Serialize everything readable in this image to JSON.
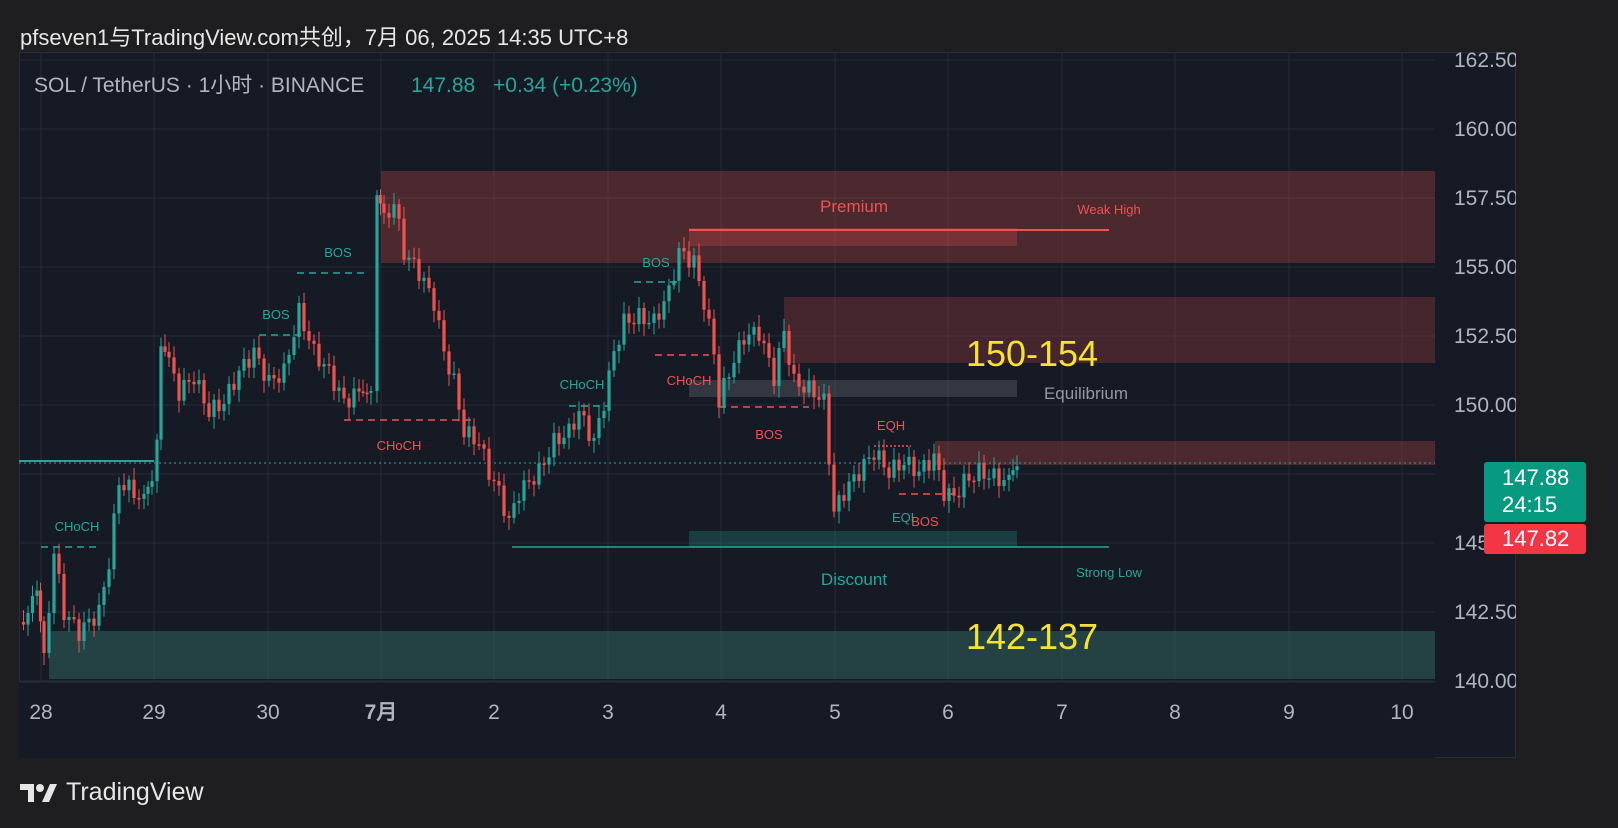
{
  "header": {
    "publisher_line": "pfseven1与TradingView.com共创，7月 06, 2025 14:35 UTC+8"
  },
  "symbol_bar": {
    "symbol": "SOL / TetherUS · 1小时 · BINANCE",
    "last": "147.88",
    "change": "+0.34 (+0.23%)"
  },
  "price_axis": [
    "162.50",
    "160.00",
    "157.50",
    "155.00",
    "152.50",
    "150.00",
    "145.00",
    "142.50",
    "140.00"
  ],
  "time_axis": [
    "28",
    "29",
    "30",
    "7月",
    "2",
    "3",
    "4",
    "5",
    "6",
    "7",
    "8",
    "9",
    "10"
  ],
  "price_tags": {
    "current": "147.88",
    "countdown": "24:15",
    "bid": "147.82"
  },
  "annotations": {
    "premium": "Premium",
    "weak_high": "Weak High",
    "equilibrium": "Equilibrium",
    "discount": "Discount",
    "strong_low": "Strong Low",
    "target_up": "150-154",
    "target_down": "142-137",
    "labels": [
      "BOS",
      "BOS",
      "BOS",
      "CHoCH",
      "CHoCH",
      "CHoCH",
      "CHoCH",
      "BOS",
      "EQH",
      "EQL",
      "BOS"
    ]
  },
  "colors": {
    "up": "#26a69a",
    "down": "#ef5350",
    "yellow": "#f5e232",
    "bg": "#161a25"
  },
  "footer": {
    "brand": "TradingView"
  }
}
